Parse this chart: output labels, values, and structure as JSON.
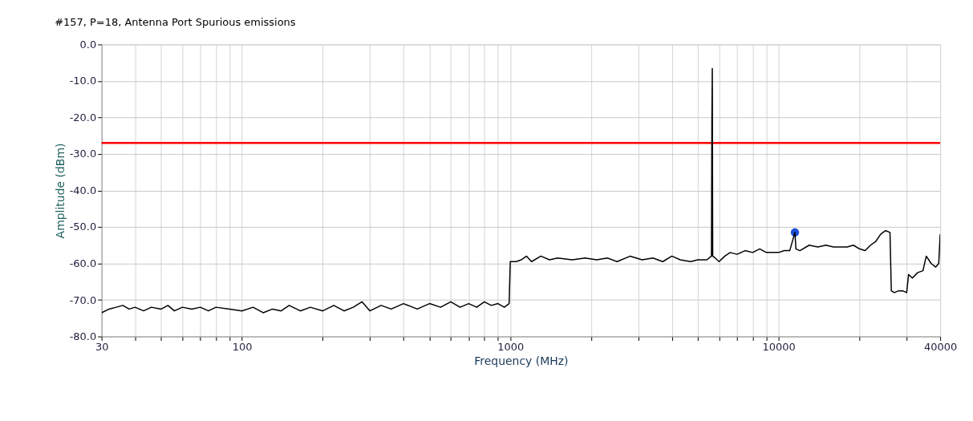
{
  "chart_data": {
    "type": "line",
    "title": "#157, P=18, Antenna Port Spurious emissions",
    "xlabel": "Frequency (MHz)",
    "ylabel": "Amplitude (dBm)",
    "log": "x",
    "xlim": [
      30,
      40000
    ],
    "xticks": [
      30,
      {
        "value": 40,
        "label": null
      },
      {
        "value": 50,
        "label": null
      },
      {
        "value": 60,
        "label": null
      },
      {
        "value": 70,
        "label": null
      },
      {
        "value": 80,
        "label": null
      },
      {
        "value": 90,
        "label": null
      },
      100,
      {
        "value": 200,
        "label": null
      },
      {
        "value": 300,
        "label": null
      },
      {
        "value": 400,
        "label": null
      },
      {
        "value": 500,
        "label": null
      },
      {
        "value": 600,
        "label": null
      },
      {
        "value": 700,
        "label": null
      },
      {
        "value": 800,
        "label": null
      },
      {
        "value": 900,
        "label": null
      },
      1000,
      {
        "value": 2000,
        "label": null
      },
      {
        "value": 3000,
        "label": null
      },
      {
        "value": 4000,
        "label": null
      },
      {
        "value": 5000,
        "label": null
      },
      {
        "value": 6000,
        "label": null
      },
      {
        "value": 7000,
        "label": null
      },
      {
        "value": 8000,
        "label": null
      },
      {
        "value": 9000,
        "label": null
      },
      10000,
      {
        "value": 20000,
        "label": null
      },
      {
        "value": 30000,
        "label": null
      },
      40000
    ],
    "ylim": [
      -80,
      0
    ],
    "yticks": [
      {
        "value": 0,
        "label": "0.0"
      },
      {
        "value": -10,
        "label": "-10.0"
      },
      {
        "value": -20,
        "label": "-20.0"
      },
      {
        "value": -30,
        "label": "-30.0"
      },
      {
        "value": -40,
        "label": "-40.0"
      },
      {
        "value": -50,
        "label": "-50.0"
      },
      {
        "value": -60,
        "label": "-60.0"
      },
      {
        "value": -70,
        "label": "-70.0"
      },
      {
        "value": -80,
        "label": "-80.0"
      }
    ],
    "grid": true,
    "ref_lines": [
      {
        "axis": "y",
        "value": -27,
        "color": "#ff0000"
      }
    ],
    "series": [
      {
        "color": "#000000",
        "x": [
          30,
          32,
          34,
          36,
          38,
          40,
          43,
          46,
          50,
          53,
          56,
          60,
          65,
          70,
          75,
          80,
          90,
          100,
          110,
          120,
          130,
          140,
          150,
          165,
          180,
          200,
          220,
          240,
          260,
          280,
          300,
          330,
          360,
          400,
          450,
          500,
          550,
          600,
          650,
          700,
          750,
          800,
          850,
          900,
          950,
          990,
          1000,
          1050,
          1100,
          1150,
          1200,
          1300,
          1400,
          1500,
          1700,
          1900,
          2100,
          2300,
          2500,
          2800,
          3100,
          3400,
          3700,
          4000,
          4300,
          4700,
          5000,
          5400,
          5620,
          5640,
          5660,
          5680,
          5800,
          6000,
          6300,
          6600,
          7000,
          7500,
          8000,
          8500,
          9000,
          9500,
          10000,
          10500,
          11000,
          11500,
          11600,
          12000,
          13000,
          14000,
          15000,
          16000,
          17000,
          18000,
          19000,
          20000,
          21000,
          22000,
          23000,
          24000,
          25000,
          26000,
          26300,
          27000,
          28000,
          29000,
          30000,
          30500,
          31500,
          33000,
          34500,
          35500,
          37000,
          38500,
          39500,
          40000
        ],
        "values": [
          -73.5,
          -72.5,
          -72,
          -71.5,
          -72.5,
          -72,
          -73,
          -72,
          -72.5,
          -71.5,
          -73,
          -72,
          -72.5,
          -72,
          -73,
          -72,
          -72.5,
          -73,
          -72,
          -73.5,
          -72.5,
          -73,
          -71.5,
          -73,
          -72,
          -73,
          -71.5,
          -73,
          -72,
          -70.5,
          -73,
          -71.5,
          -72.5,
          -71,
          -72.5,
          -71,
          -72,
          -70.5,
          -72,
          -71,
          -72,
          -70.5,
          -71.5,
          -71,
          -72,
          -71,
          -59.5,
          -59.5,
          -59,
          -58,
          -59.5,
          -58,
          -59,
          -58.5,
          -59,
          -58.5,
          -59,
          -58.5,
          -59.5,
          -58,
          -59,
          -58.5,
          -59.5,
          -58,
          -59,
          -59.5,
          -59,
          -59,
          -58,
          -21,
          -6.6,
          -58,
          -58.5,
          -59.5,
          -58,
          -57,
          -57.5,
          -56.5,
          -57,
          -56,
          -57,
          -57,
          -57,
          -56.5,
          -56.5,
          -51.5,
          -56,
          -56.5,
          -55,
          -55.5,
          -55,
          -55.5,
          -55.5,
          -55.5,
          -55,
          -56,
          -56.5,
          -55,
          -54,
          -52,
          -51,
          -51.5,
          -67.5,
          -68,
          -67.5,
          -67.5,
          -68,
          -63,
          -64,
          -62.5,
          -62,
          -58,
          -60,
          -61,
          -60,
          -52
        ]
      },
      {
        "type": "scatter",
        "marker": "circle",
        "color": "#1f4fd6",
        "x": [
          11500
        ],
        "values": [
          -51.5
        ]
      }
    ]
  }
}
